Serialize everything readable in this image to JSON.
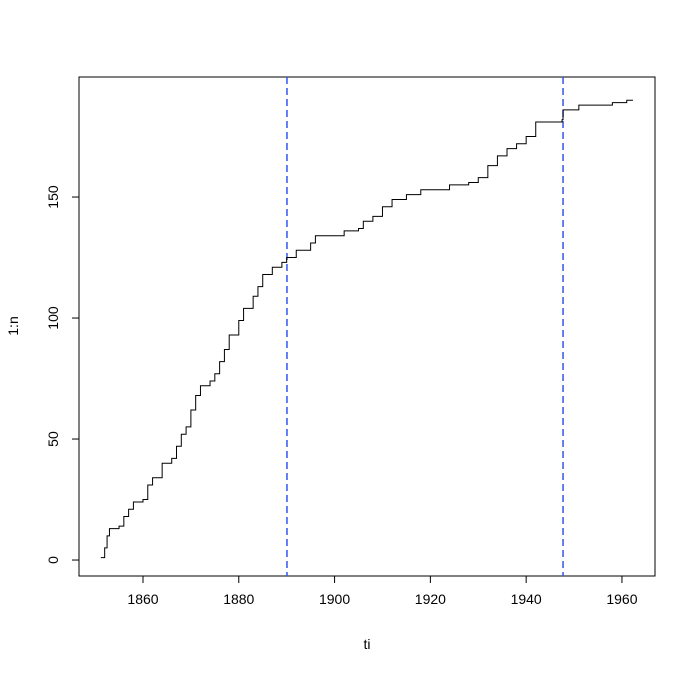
{
  "chart_data": {
    "type": "line",
    "step": true,
    "x_label": "ti",
    "y_label": "1:n",
    "x": [
      1851.2,
      1852,
      1852.5,
      1853,
      1855,
      1856,
      1857,
      1858,
      1860,
      1861,
      1862,
      1864,
      1866,
      1867,
      1868,
      1869,
      1870,
      1871,
      1872,
      1874,
      1875,
      1876,
      1877,
      1878,
      1880,
      1881,
      1883,
      1884,
      1885,
      1887,
      1889,
      1890,
      1892,
      1895,
      1896,
      1900,
      1902,
      1905,
      1906,
      1908,
      1910,
      1912,
      1915,
      1918,
      1923,
      1924,
      1928,
      1930,
      1932,
      1934,
      1936,
      1938,
      1940,
      1942,
      1947.5,
      1947.7,
      1951,
      1957,
      1958,
      1961,
      1962.3
    ],
    "series": [
      {
        "color": "#000000",
        "values": [
          1,
          5,
          10,
          13,
          14,
          18,
          21,
          24,
          25,
          31,
          34,
          40,
          42,
          47,
          52,
          55,
          62,
          68,
          72,
          74,
          77,
          82,
          87,
          93,
          99,
          104,
          109,
          113,
          118,
          121,
          123,
          125,
          128,
          131,
          134,
          134,
          136,
          137,
          140,
          142,
          146,
          149,
          151,
          153,
          153,
          155,
          156,
          158,
          163,
          167,
          170,
          172,
          175,
          181,
          182,
          186,
          188,
          188,
          189,
          190,
          190
        ]
      }
    ],
    "vlines": [
      1890.06,
      1947.7
    ],
    "vline_color": "#3355ee",
    "xlim": [
      1846.64,
      1966.9
    ],
    "ylim": [
      -6.6,
      199.6
    ],
    "xticks": [
      1860,
      1880,
      1900,
      1920,
      1940,
      1960
    ],
    "yticks": [
      0,
      50,
      100,
      150
    ]
  }
}
